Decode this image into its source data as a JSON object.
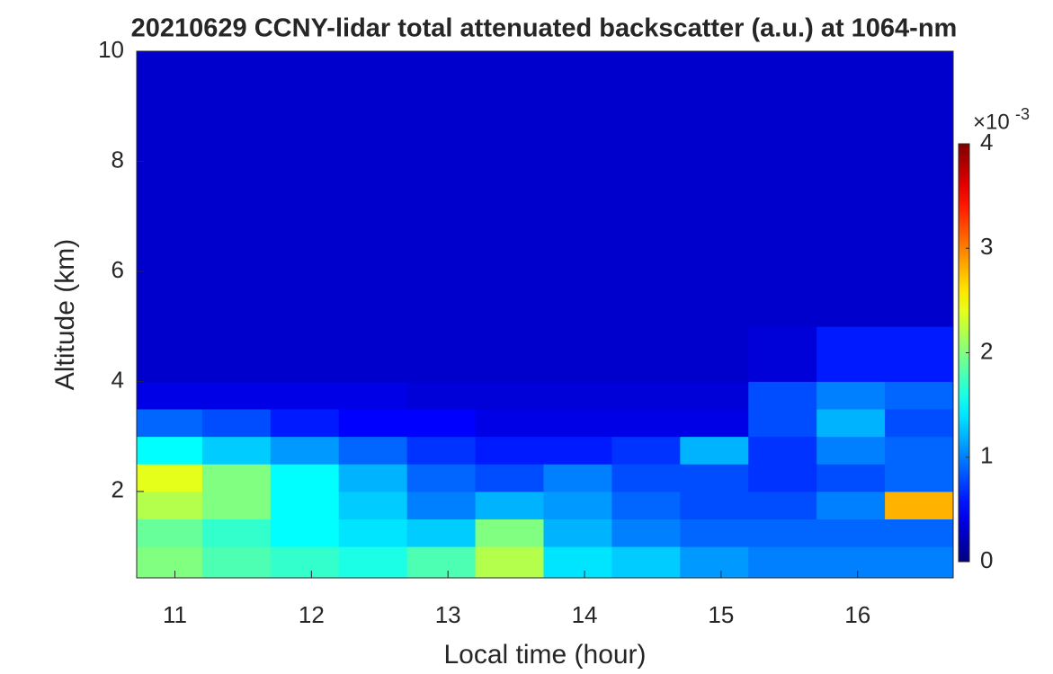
{
  "chart_data": {
    "type": "heatmap",
    "title": "20210629 CCNY-lidar total attenuated backscatter (a.u.) at 1064-nm",
    "xlabel": "Local time (hour)",
    "ylabel": "Altitude (km)",
    "colormap": "jet",
    "x_edges": [
      10.72,
      11.2,
      11.7,
      12.2,
      12.7,
      13.2,
      13.7,
      14.2,
      14.7,
      15.2,
      15.7,
      16.2,
      16.7
    ],
    "y_edges": [
      0.43,
      1,
      1.5,
      2,
      2.5,
      3,
      3.5,
      4,
      5,
      6,
      8,
      10
    ],
    "values": [
      [
        2.0,
        1.8,
        1.7,
        1.6,
        1.8,
        2.2,
        1.4,
        1.3,
        1.1,
        1.0,
        1.0,
        1.0
      ],
      [
        1.9,
        1.7,
        1.5,
        1.4,
        1.3,
        2.0,
        1.2,
        1.0,
        0.9,
        0.9,
        0.9,
        0.9
      ],
      [
        2.2,
        2.0,
        1.5,
        1.3,
        1.0,
        1.2,
        1.1,
        0.9,
        0.8,
        0.8,
        1.0,
        2.8
      ],
      [
        2.4,
        2.0,
        1.5,
        1.2,
        0.9,
        0.8,
        1.0,
        0.8,
        0.8,
        0.7,
        0.8,
        0.9
      ],
      [
        1.5,
        1.3,
        1.1,
        0.9,
        0.7,
        0.6,
        0.6,
        0.7,
        1.2,
        0.7,
        1.0,
        0.9
      ],
      [
        0.9,
        0.8,
        0.6,
        0.5,
        0.5,
        0.4,
        0.4,
        0.4,
        0.4,
        0.8,
        1.2,
        0.8
      ],
      [
        0.4,
        0.4,
        0.4,
        0.4,
        0.35,
        0.35,
        0.35,
        0.35,
        0.35,
        0.8,
        1.0,
        0.9
      ],
      [
        0.3,
        0.3,
        0.3,
        0.3,
        0.3,
        0.3,
        0.3,
        0.3,
        0.3,
        0.35,
        0.6,
        0.6
      ],
      [
        0.3,
        0.3,
        0.3,
        0.3,
        0.3,
        0.3,
        0.3,
        0.3,
        0.3,
        0.3,
        0.3,
        0.3
      ],
      [
        0.3,
        0.3,
        0.3,
        0.3,
        0.3,
        0.3,
        0.3,
        0.3,
        0.3,
        0.3,
        0.3,
        0.3
      ],
      [
        0.3,
        0.3,
        0.3,
        0.3,
        0.3,
        0.3,
        0.3,
        0.3,
        0.3,
        0.3,
        0.3,
        0.3
      ]
    ],
    "xlim": [
      10.72,
      16.7
    ],
    "ylim": [
      0.43,
      10
    ],
    "xticks": [
      11,
      12,
      13,
      14,
      15,
      16
    ],
    "yticks": [
      2,
      4,
      6,
      8,
      10
    ],
    "clim": [
      0,
      4
    ],
    "cticks": [
      0,
      1,
      2,
      3,
      4
    ],
    "colorbar_multiplier": "×10",
    "colorbar_exponent": -3
  }
}
